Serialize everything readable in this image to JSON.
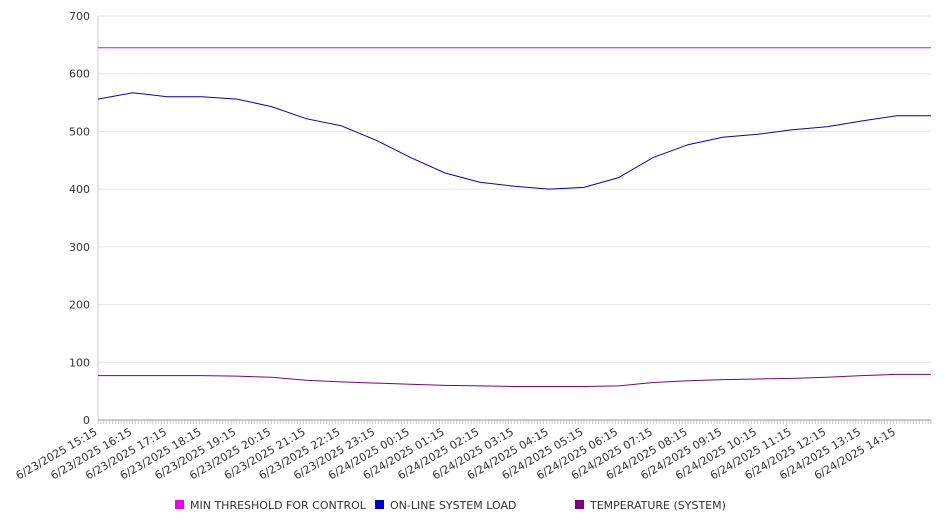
{
  "chart_data": {
    "type": "line",
    "title": "",
    "xlabel": "",
    "ylabel": "",
    "ylim": [
      0,
      700
    ],
    "y_ticks": [
      0,
      100,
      200,
      300,
      400,
      500,
      600,
      700
    ],
    "x_tick_labels": [
      "6/23/2025 15:15",
      "6/23/2025 16:15",
      "6/23/2025 17:15",
      "6/23/2025 18:15",
      "6/23/2025 19:15",
      "6/23/2025 20:15",
      "6/23/2025 21:15",
      "6/23/2025 22:15",
      "6/23/2025 23:15",
      "6/24/2025 00:15",
      "6/24/2025 01:15",
      "6/24/2025 02:15",
      "6/24/2025 03:15",
      "6/24/2025 04:15",
      "6/24/2025 05:15",
      "6/24/2025 06:15",
      "6/24/2025 07:15",
      "6/24/2025 08:15",
      "6/24/2025 09:15",
      "6/24/2025 10:15",
      "6/24/2025 11:15",
      "6/24/2025 12:15",
      "6/24/2025 13:15",
      "6/24/2025 14:15"
    ],
    "grid": "horizontal",
    "legend_position": "bottom",
    "series": [
      {
        "name": "MIN THRESHOLD FOR CONTROL",
        "color": "#ee00ee",
        "x": [
          "6/23/2025 15:15",
          "6/24/2025 14:15"
        ],
        "values": [
          645,
          645
        ]
      },
      {
        "name": "ON-LINE SYSTEM LOAD",
        "color": "#0000cc",
        "x": [
          "6/23/2025 15:15",
          "6/23/2025 16:15",
          "6/23/2025 17:15",
          "6/23/2025 18:15",
          "6/23/2025 19:15",
          "6/23/2025 20:15",
          "6/23/2025 21:15",
          "6/23/2025 22:15",
          "6/23/2025 23:15",
          "6/24/2025 00:15",
          "6/24/2025 01:15",
          "6/24/2025 02:15",
          "6/24/2025 03:15",
          "6/24/2025 04:15",
          "6/24/2025 05:15",
          "6/24/2025 06:15",
          "6/24/2025 07:15",
          "6/24/2025 08:15",
          "6/24/2025 09:15",
          "6/24/2025 10:15",
          "6/24/2025 11:15",
          "6/24/2025 12:15",
          "6/24/2025 13:15",
          "6/24/2025 14:15"
        ],
        "values": [
          556,
          567,
          560,
          560,
          556,
          543,
          522,
          510,
          485,
          455,
          428,
          412,
          405,
          400,
          403,
          420,
          455,
          477,
          490,
          495,
          503,
          508,
          518,
          527
        ]
      },
      {
        "name": "TEMPERATURE (SYSTEM)",
        "color": "#800080",
        "x": [
          "6/23/2025 15:15",
          "6/23/2025 16:15",
          "6/23/2025 17:15",
          "6/23/2025 18:15",
          "6/23/2025 19:15",
          "6/23/2025 20:15",
          "6/23/2025 21:15",
          "6/23/2025 22:15",
          "6/23/2025 23:15",
          "6/24/2025 00:15",
          "6/24/2025 01:15",
          "6/24/2025 02:15",
          "6/24/2025 03:15",
          "6/24/2025 04:15",
          "6/24/2025 05:15",
          "6/24/2025 06:15",
          "6/24/2025 07:15",
          "6/24/2025 08:15",
          "6/24/2025 09:15",
          "6/24/2025 10:15",
          "6/24/2025 11:15",
          "6/24/2025 12:15",
          "6/24/2025 13:15",
          "6/24/2025 14:15"
        ],
        "values": [
          77,
          77,
          77,
          77,
          76,
          74,
          69,
          66,
          64,
          62,
          60,
          59,
          58,
          58,
          58,
          59,
          65,
          68,
          70,
          71,
          72,
          74,
          77,
          79
        ]
      }
    ]
  }
}
